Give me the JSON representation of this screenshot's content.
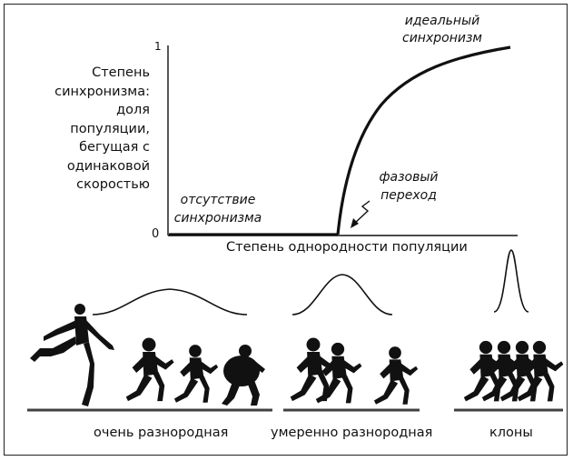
{
  "figure": {
    "y_axis_label": [
      "Степень",
      "синхронизма:",
      "доля популяции,",
      "бегущая с",
      "одинаковой",
      "скоростью"
    ],
    "y_tick_top": "1",
    "y_tick_bottom": "0",
    "x_axis_label": "Степень однородности популяции",
    "annotations": {
      "ideal": [
        "идеальный",
        "синхронизм"
      ],
      "none": [
        "отсутствие",
        "синхронизма"
      ],
      "phase": [
        "фазовый",
        "переход"
      ]
    },
    "groups": [
      {
        "label": "очень разнородная",
        "spread": "wide",
        "runners": 4
      },
      {
        "label": "умеренно разнородная",
        "spread": "medium",
        "runners": 3
      },
      {
        "label": "клоны",
        "spread": "narrow",
        "runners": 4
      }
    ]
  }
}
